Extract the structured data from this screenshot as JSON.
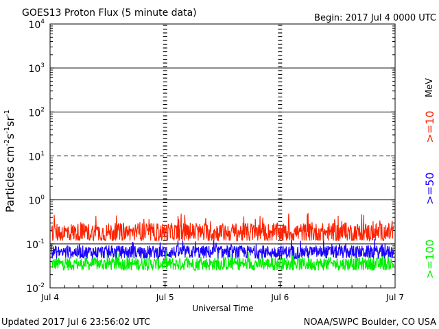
{
  "header": {
    "title": "GOES13 Proton Flux (5 minute data)",
    "begin": "Begin: 2017 Jul 4 0000 UTC"
  },
  "footer": {
    "updated": "Updated 2017 Jul  6 23:56:02 UTC",
    "credit": "NOAA/SWPC Boulder, CO USA"
  },
  "chart_data": {
    "type": "line",
    "title": "GOES13 Proton Flux (5 minute data)",
    "xlabel": "Universal Time",
    "ylabel": "Particles cm-2s-1sr-1",
    "yscale": "log",
    "ylim": [
      0.01,
      10000
    ],
    "xlim": [
      "2017-07-04",
      "2017-07-07"
    ],
    "x_ticks": [
      "Jul 4",
      "Jul 5",
      "Jul 6",
      "Jul 7"
    ],
    "y_ticks": [
      {
        "base": "10",
        "exp": "4",
        "value": 10000
      },
      {
        "base": "10",
        "exp": "3",
        "value": 1000
      },
      {
        "base": "10",
        "exp": "2",
        "value": 100
      },
      {
        "base": "10",
        "exp": "1",
        "value": 10
      },
      {
        "base": "10",
        "exp": "0",
        "value": 1
      },
      {
        "base": "10",
        "exp": "-1",
        "value": 0.1
      },
      {
        "base": "10",
        "exp": "-2",
        "value": 0.01
      }
    ],
    "reference_lines": [
      {
        "value": 1000,
        "style": "solid"
      },
      {
        "value": 100,
        "style": "solid"
      },
      {
        "value": 10,
        "style": "dashed"
      },
      {
        "value": 1,
        "style": "solid"
      },
      {
        "value": 0.1,
        "style": "solid"
      }
    ],
    "legend_unit": "MeV",
    "series": [
      {
        "name": ">=10",
        "color": "#ff2200",
        "typical": 0.18,
        "min": 0.12,
        "max": 0.5
      },
      {
        "name": ">=50",
        "color": "#1a00ff",
        "typical": 0.065,
        "min": 0.045,
        "max": 0.13
      },
      {
        "name": ">=100",
        "color": "#00ee00",
        "typical": 0.035,
        "min": 0.025,
        "max": 0.07
      }
    ]
  }
}
